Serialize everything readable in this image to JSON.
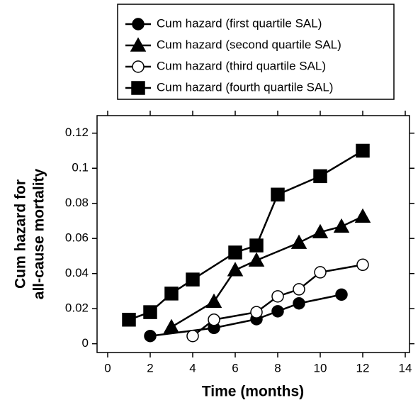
{
  "chart_data": {
    "type": "line",
    "xlabel": "Time (months)",
    "ylabel": [
      "Cum hazard for",
      "all-cause mortality"
    ],
    "xlim": [
      -0.5,
      14.2
    ],
    "ylim": [
      -0.005,
      0.13
    ],
    "xticks": [
      0,
      2,
      4,
      6,
      8,
      10,
      12,
      14
    ],
    "yticks": [
      0,
      0.02,
      0.04,
      0.06,
      0.08,
      0.1,
      0.12
    ],
    "legend": "top",
    "series": [
      {
        "name": "Cum hazard (first quartile SAL)",
        "color": "#000000",
        "marker": "circle",
        "x": [
          2,
          5,
          7,
          8,
          9,
          11
        ],
        "values": [
          0.0044,
          0.009,
          0.014,
          0.0185,
          0.023,
          0.028
        ]
      },
      {
        "name": "Cum hazard (second quartile SAL)",
        "color": "#000000",
        "marker": "triangle",
        "x": [
          3,
          5,
          6,
          7,
          9,
          10,
          11,
          12
        ],
        "values": [
          0.0095,
          0.024,
          0.042,
          0.0475,
          0.0576,
          0.0636,
          0.0668,
          0.0725
        ]
      },
      {
        "name": "Cum hazard (third quartile SAL)",
        "color": "#000000",
        "marker": "circle-open",
        "x": [
          4,
          5,
          7,
          8,
          9,
          10,
          12
        ],
        "values": [
          0.0044,
          0.0137,
          0.018,
          0.027,
          0.031,
          0.0407,
          0.045
        ]
      },
      {
        "name": "Cum hazard (fourth quartile SAL)",
        "color": "#000000",
        "marker": "square",
        "x": [
          1,
          2,
          3,
          4,
          6,
          7,
          8,
          10,
          12
        ],
        "values": [
          0.0137,
          0.018,
          0.0286,
          0.0366,
          0.052,
          0.056,
          0.085,
          0.0955,
          0.11
        ]
      }
    ]
  }
}
